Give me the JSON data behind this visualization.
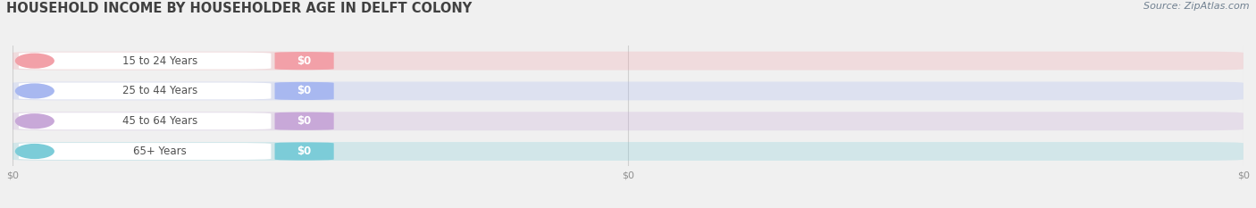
{
  "title": "HOUSEHOLD INCOME BY HOUSEHOLDER AGE IN DELFT COLONY",
  "source": "Source: ZipAtlas.com",
  "categories": [
    "15 to 24 Years",
    "25 to 44 Years",
    "45 to 64 Years",
    "65+ Years"
  ],
  "values": [
    0,
    0,
    0,
    0
  ],
  "bar_colors": [
    "#f2a0a8",
    "#a8b8f0",
    "#c8a8d8",
    "#7cccd8"
  ],
  "bg_color": "#f0f0f0",
  "bar_bg_color": "#e8e8e8",
  "white_pill_color": "#ffffff",
  "title_color": "#404040",
  "label_text_color": "#505050",
  "value_text_color": "#ffffff",
  "source_color": "#708090",
  "xtick_color": "#909090",
  "gridline_color": "#d0d0d0",
  "figsize": [
    14.06,
    2.33
  ],
  "dpi": 100
}
